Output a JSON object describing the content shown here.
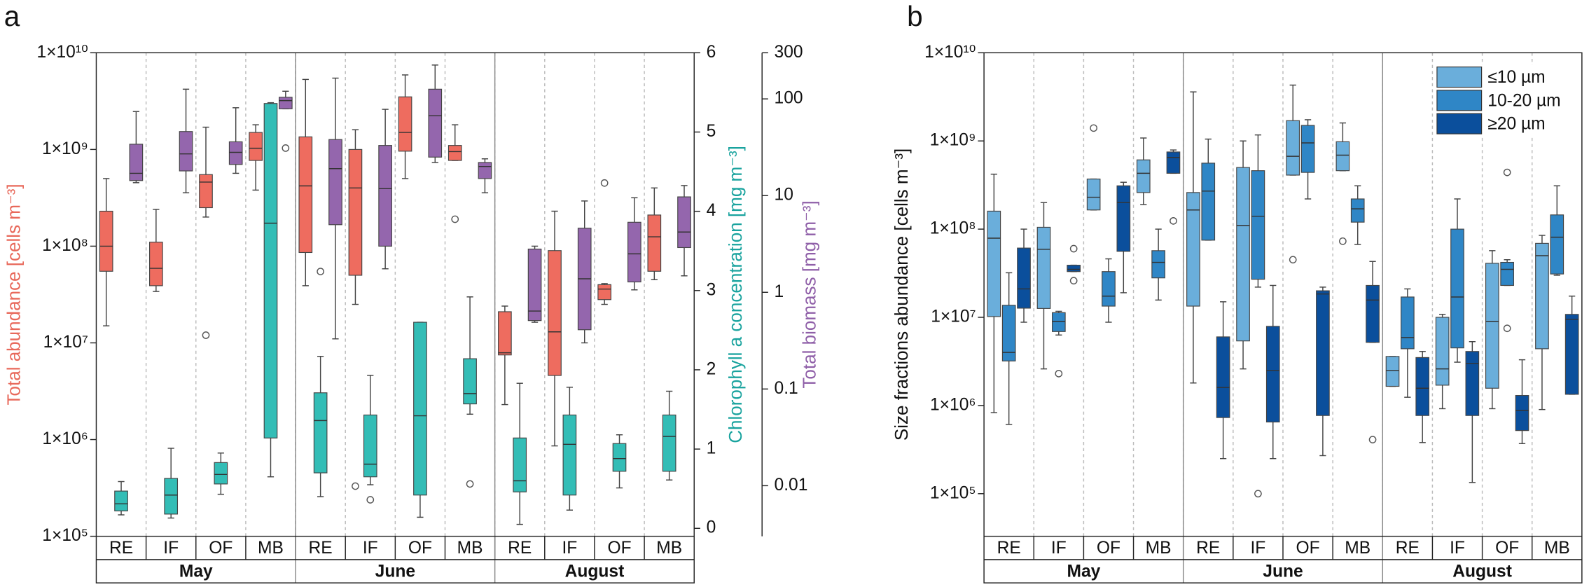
{
  "chart_data": [
    {
      "type": "box",
      "panel": "a",
      "categories": [
        "RE",
        "IF",
        "OF",
        "MB",
        "RE",
        "IF",
        "OF",
        "MB",
        "RE",
        "IF",
        "OF",
        "MB"
      ],
      "groups": [
        "May",
        "June",
        "August"
      ],
      "ylabel": "Total abundance [cells m⁻³]",
      "y2label": "Chlorophyll a concentration [mg m⁻³]",
      "y3label": "Total biomass [mg m⁻³]",
      "label_colors": {
        "y": "#e8685a",
        "y2": "#19a39e",
        "y3": "#8f5fa8"
      },
      "yscale": "log",
      "ylim": [
        100000.0,
        10000000000.0
      ],
      "yticks": [
        {
          "value": 100000.0,
          "label": "1×10⁵"
        },
        {
          "value": 1000000.0,
          "label": "1×10⁶"
        },
        {
          "value": 10000000.0,
          "label": "1×10⁷"
        },
        {
          "value": 100000000.0,
          "label": "1×10⁸"
        },
        {
          "value": 1000000000.0,
          "label": "1×10⁹"
        },
        {
          "value": 10000000000.0,
          "label": "1×10¹⁰"
        }
      ],
      "y2lim": [
        -0.1,
        6
      ],
      "y2ticks": [
        0,
        1,
        2,
        3,
        4,
        5,
        6
      ],
      "y3scale": "log",
      "y3lim": [
        0.003,
        300
      ],
      "y3ticks": [
        0.01,
        0.1,
        1,
        10,
        100,
        300
      ],
      "series": [
        {
          "axis": "y",
          "color": "#ee6c5f",
          "values": [
            [
              15000000.0,
              55000000.0,
              100000000.0,
              230000000.0,
              500000000.0
            ],
            [
              34000000.0,
              39000000.0,
              59000000.0,
              110000000.0,
              240000000.0
            ],
            [
              200000000.0,
              250000000.0,
              460000000.0,
              550000000.0,
              1700000000.0
            ],
            [
              380000000.0,
              770000000.0,
              1030000000.0,
              1500000000.0,
              1800000000.0
            ],
            [
              39000000.0,
              86000000.0,
              420000000.0,
              1350000000.0,
              5300000000.0
            ],
            [
              25000000.0,
              50000000.0,
              400000000.0,
              1000000000.0,
              1600000000.0
            ],
            [
              500000000.0,
              960000000.0,
              1500000000.0,
              3500000000.0,
              5900000000.0
            ],
            [
              770000000.0,
              770000000.0,
              950000000.0,
              1100000000.0,
              1800000000.0
            ],
            [
              2300000.0,
              7500000.0,
              7900000.0,
              21000000.0,
              24000000.0
            ],
            [
              860000.0,
              4600000.0,
              13000000.0,
              90000000.0,
              230000000.0
            ],
            [
              25000000.0,
              28000000.0,
              36000000.0,
              40000000.0,
              41000000.0
            ],
            [
              45000000.0,
              55000000.0,
              125000000.0,
              210000000.0,
              400000000.0
            ]
          ],
          "outliers": [
            [],
            [],
            [
              12000000.0
            ],
            [],
            [],
            [
              330000.0
            ],
            [],
            [
              190000000.0
            ],
            [],
            [],
            [
              450000000.0
            ],
            []
          ]
        },
        {
          "axis": "y2",
          "color": "#33bdb6",
          "values": [
            [
              0.17,
              0.22,
              0.31,
              0.47,
              0.59
            ],
            [
              0.13,
              0.18,
              0.42,
              0.63,
              1.01
            ],
            [
              0.43,
              0.56,
              0.68,
              0.83,
              0.95
            ],
            [
              0.65,
              1.14,
              3.85,
              5.36,
              5.37
            ],
            [
              0.4,
              0.7,
              1.36,
              1.71,
              2.17
            ],
            [
              0.55,
              0.65,
              0.81,
              1.43,
              1.93
            ],
            [
              0.14,
              0.42,
              1.42,
              2.6,
              2.6
            ],
            [
              1.44,
              1.57,
              1.7,
              2.14,
              2.92
            ],
            [
              0.05,
              0.46,
              0.6,
              1.14,
              1.83
            ],
            [
              0.23,
              0.42,
              1.06,
              1.43,
              1.78
            ],
            [
              0.51,
              0.72,
              0.88,
              1.07,
              1.18
            ],
            [
              0.61,
              0.72,
              1.16,
              1.43,
              1.73
            ]
          ],
          "outliers": [
            [],
            [],
            [],
            [],
            [
              3.24
            ],
            [
              0.36
            ],
            [],
            [
              0.56
            ],
            [],
            [],
            [],
            []
          ]
        },
        {
          "axis": "y3",
          "color": "#9466ad",
          "values": [
            [
              13.6,
              14.3,
              17,
              34,
              74
            ],
            [
              10.7,
              18,
              27,
              46,
              126
            ],
            [
              17,
              21,
              28,
              36,
              81
            ],
            [
              79,
              79,
              96,
              104,
              120
            ],
            [
              0.33,
              5,
              19,
              38,
              164
            ],
            [
              1.75,
              3,
              11.8,
              33,
              78
            ],
            [
              22,
              25,
              67,
              126,
              224
            ],
            [
              10.7,
              15,
              20,
              22,
              24
            ],
            [
              0.49,
              0.51,
              0.64,
              2.8,
              3
            ],
            [
              0.3,
              0.41,
              1.38,
              4.6,
              8.8
            ],
            [
              1.06,
              1.28,
              2.5,
              5.3,
              9.5
            ],
            [
              1.48,
              2.9,
              4.2,
              9.7,
              12.7
            ]
          ],
          "outliers": [
            [],
            [],
            [],
            [
              31
            ],
            [],
            [],
            [],
            [],
            [],
            [],
            [],
            []
          ]
        }
      ]
    },
    {
      "type": "box",
      "panel": "b",
      "categories": [
        "RE",
        "IF",
        "OF",
        "MB",
        "RE",
        "IF",
        "OF",
        "MB",
        "RE",
        "IF",
        "OF",
        "MB"
      ],
      "groups": [
        "May",
        "June",
        "August"
      ],
      "ylabel": "Size fractions abundance [cells m⁻³]",
      "yscale": "log",
      "ylim": [
        32900,
        10000000000.0
      ],
      "yticks": [
        {
          "value": 100000.0,
          "label": "1×10⁵"
        },
        {
          "value": 1000000.0,
          "label": "1×10⁶"
        },
        {
          "value": 10000000.0,
          "label": "1×10⁷"
        },
        {
          "value": 100000000.0,
          "label": "1×10⁸"
        },
        {
          "value": 1000000000.0,
          "label": "1×10⁹"
        },
        {
          "value": 10000000000.0,
          "label": "1×10¹⁰"
        }
      ],
      "legend": "upper right",
      "series": [
        {
          "name": "≤10 µm",
          "axis": "y",
          "color": "#6aaedb",
          "values": [
            [
              830000.0,
              10200000.0,
              79000000.0,
              160000000.0,
              420000000.0
            ],
            [
              2600000.0,
              12600000.0,
              59000000.0,
              105000000.0,
              200000000.0
            ],
            [
              165000000.0,
              165000000.0,
              230000000.0,
              370000000.0,
              370000000.0
            ],
            [
              190000000.0,
              260000000.0,
              430000000.0,
              610000000.0,
              1080000000.0
            ],
            [
              1800000.0,
              13400000.0,
              165000000.0,
              260000000.0,
              3600000000.0
            ],
            [
              2600000.0,
              5400000.0,
              110000000.0,
              500000000.0,
              1000000000.0
            ],
            [
              410000000.0,
              410000000.0,
              670000000.0,
              1700000000.0,
              4300000000.0
            ],
            [
              460000000.0,
              460000000.0,
              690000000.0,
              980000000.0,
              1600000000.0
            ],
            [
              1650000.0,
              1650000.0,
              2500000.0,
              3600000.0,
              3600000.0
            ],
            [
              920000.0,
              1700000.0,
              2600000.0,
              10000000.0,
              10800000.0
            ],
            [
              920000.0,
              1570000.0,
              9000000.0,
              41000000.0,
              57000000.0
            ],
            [
              900000.0,
              4400000.0,
              50000000.0,
              69000000.0,
              85000000.0
            ]
          ],
          "outliers": [
            [],
            [],
            [
              1400000000.0
            ],
            [],
            [],
            [],
            [
              45000000.0
            ],
            [
              73000000.0
            ],
            [],
            [],
            [],
            []
          ]
        },
        {
          "name": "10-20 µm",
          "axis": "y",
          "color": "#2f86c6",
          "values": [
            [
              610000.0,
              3200000.0,
              4000000.0,
              13700000.0,
              32000000.0
            ],
            [
              6300000.0,
              6900000.0,
              9000000.0,
              11300000.0,
              11700000.0
            ],
            [
              8800000.0,
              13400000.0,
              17400000.0,
              33000000.0,
              46000000.0
            ],
            [
              15700000.0,
              28000000.0,
              42000000.0,
              57000000.0,
              100000000.0
            ],
            [
              75000000.0,
              75000000.0,
              270000000.0,
              560000000.0,
              1050000000.0
            ],
            [
              22000000.0,
              27000000.0,
              140000000.0,
              460000000.0,
              1170000000.0
            ],
            [
              220000000.0,
              440000000.0,
              950000000.0,
              1500000000.0,
              1740000000.0
            ],
            [
              67000000.0,
              120000000.0,
              170000000.0,
              220000000.0,
              310000000.0
            ],
            [
              1240000.0,
              4400000.0,
              5900000.0,
              17000000.0,
              21000000.0
            ],
            [
              3100000.0,
              4500000.0,
              17000000.0,
              100000000.0,
              220000000.0
            ],
            [
              23000000.0,
              23000000.0,
              35000000.0,
              42000000.0,
              45000000.0
            ],
            [
              30000000.0,
              31000000.0,
              81000000.0,
              145000000.0,
              310000000.0
            ]
          ],
          "outliers": [
            [],
            [
              2300000.0
            ],
            [],
            [],
            [],
            [
              100000.0
            ],
            [],
            [],
            [],
            [],
            [
              440000000.0,
              7500000.0
            ],
            []
          ]
        },
        {
          "name": "≥20 µm",
          "axis": "y",
          "color": "#0b4f9c",
          "values": [
            [
              8800000.0,
              12700000.0,
              21000000.0,
              61000000.0,
              100000000.0
            ],
            [
              33000000.0,
              33000000.0,
              35000000.0,
              39000000.0,
              39000000.0
            ],
            [
              19000000.0,
              56000000.0,
              200000000.0,
              310000000.0,
              340000000.0
            ],
            [
              430000000.0,
              430000000.0,
              650000000.0,
              750000000.0,
              790000000.0
            ],
            [
              250000.0,
              730000.0,
              1600000.0,
              6000000.0,
              15000000.0
            ],
            [
              250000.0,
              650000.0,
              2500000.0,
              7900000.0,
              23000000.0
            ],
            [
              270000.0,
              770000.0,
              18400000.0,
              20000000.0,
              22000000.0
            ],
            [
              5200000.0,
              5200000.0,
              15700000.0,
              23000000.0,
              43000000.0
            ],
            [
              380000.0,
              770000.0,
              1570000.0,
              3500000.0,
              4100000.0
            ],
            [
              134000.0,
              770000.0,
              3000000.0,
              4100000.0,
              5300000.0
            ],
            [
              370000.0,
              520000.0,
              880000.0,
              1300000.0,
              3300000.0
            ],
            [
              1340000.0,
              1340000.0,
              9500000.0,
              10800000.0,
              17400000.0
            ]
          ],
          "outliers": [
            [],
            [
              60000000.0,
              26000000.0
            ],
            [],
            [
              124000000.0
            ],
            [],
            [],
            [],
            [
              410000.0
            ],
            [],
            [],
            [],
            []
          ]
        }
      ]
    }
  ]
}
